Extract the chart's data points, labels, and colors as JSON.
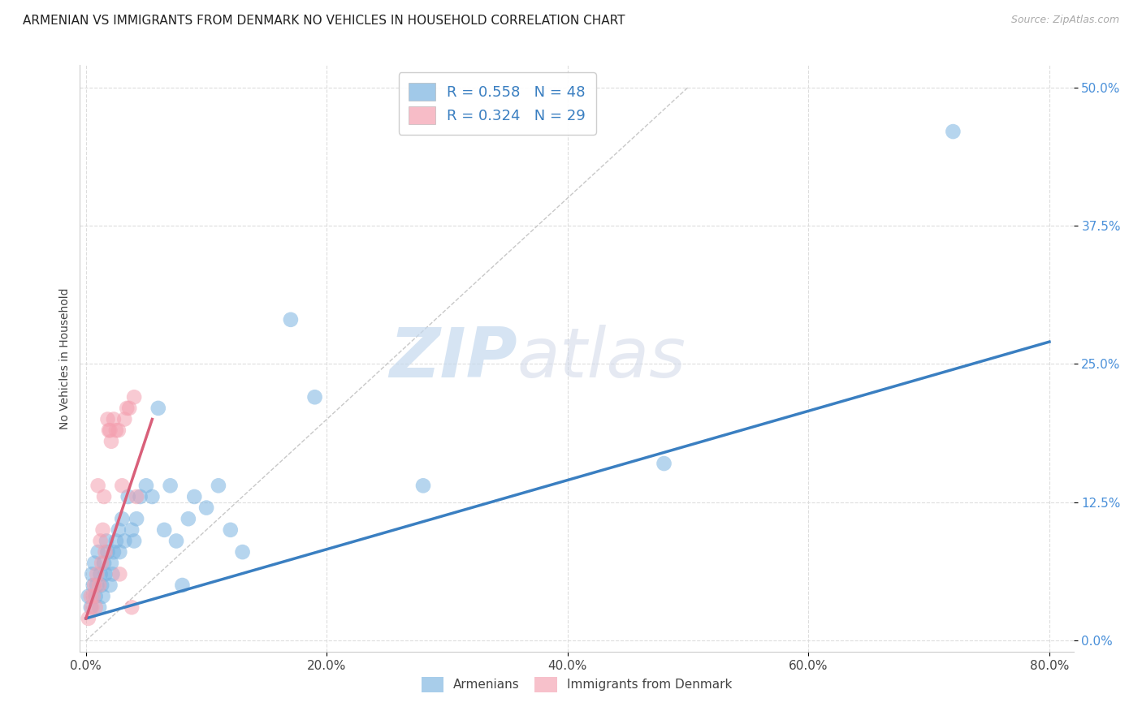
{
  "title": "ARMENIAN VS IMMIGRANTS FROM DENMARK NO VEHICLES IN HOUSEHOLD CORRELATION CHART",
  "source": "Source: ZipAtlas.com",
  "xlabel_ticks": [
    "0.0%",
    "20.0%",
    "40.0%",
    "60.0%",
    "80.0%"
  ],
  "xlabel_tick_vals": [
    0.0,
    0.2,
    0.4,
    0.6,
    0.8
  ],
  "ylabel_ticks": [
    "0.0%",
    "12.5%",
    "25.0%",
    "37.5%",
    "50.0%"
  ],
  "ylabel_tick_vals": [
    0.0,
    0.125,
    0.25,
    0.375,
    0.5
  ],
  "xlim": [
    -0.005,
    0.82
  ],
  "ylim": [
    -0.01,
    0.52
  ],
  "ylabel": "No Vehicles in Household",
  "legend_armenians": "Armenians",
  "legend_denmark": "Immigrants from Denmark",
  "armenian_color": "#7ab3e0",
  "denmark_color": "#f4a0b0",
  "armenian_R": "0.558",
  "armenian_N": "48",
  "denmark_R": "0.324",
  "denmark_N": "29",
  "watermark_zip": "ZIP",
  "watermark_atlas": "atlas",
  "blue_line_color": "#3a7fc1",
  "pink_line_color": "#d9607a",
  "diag_line_color": "#c8c8c8",
  "armenians_x": [
    0.002,
    0.004,
    0.005,
    0.006,
    0.007,
    0.008,
    0.009,
    0.01,
    0.011,
    0.012,
    0.013,
    0.014,
    0.015,
    0.016,
    0.017,
    0.018,
    0.02,
    0.021,
    0.022,
    0.023,
    0.025,
    0.027,
    0.028,
    0.03,
    0.032,
    0.035,
    0.038,
    0.04,
    0.042,
    0.045,
    0.05,
    0.055,
    0.06,
    0.065,
    0.07,
    0.075,
    0.08,
    0.085,
    0.09,
    0.1,
    0.11,
    0.12,
    0.13,
    0.17,
    0.19,
    0.28,
    0.48,
    0.72
  ],
  "armenians_y": [
    0.04,
    0.03,
    0.06,
    0.05,
    0.07,
    0.04,
    0.05,
    0.08,
    0.03,
    0.06,
    0.05,
    0.04,
    0.07,
    0.06,
    0.09,
    0.08,
    0.05,
    0.07,
    0.06,
    0.08,
    0.09,
    0.1,
    0.08,
    0.11,
    0.09,
    0.13,
    0.1,
    0.09,
    0.11,
    0.13,
    0.14,
    0.13,
    0.21,
    0.1,
    0.14,
    0.09,
    0.05,
    0.11,
    0.13,
    0.12,
    0.14,
    0.1,
    0.08,
    0.29,
    0.22,
    0.14,
    0.16,
    0.46
  ],
  "denmark_x": [
    0.002,
    0.004,
    0.005,
    0.006,
    0.007,
    0.008,
    0.009,
    0.01,
    0.011,
    0.012,
    0.013,
    0.014,
    0.015,
    0.016,
    0.018,
    0.019,
    0.02,
    0.021,
    0.023,
    0.025,
    0.027,
    0.028,
    0.03,
    0.032,
    0.034,
    0.036,
    0.038,
    0.04,
    0.042
  ],
  "denmark_y": [
    0.02,
    0.04,
    0.03,
    0.04,
    0.05,
    0.03,
    0.06,
    0.14,
    0.05,
    0.09,
    0.07,
    0.1,
    0.13,
    0.08,
    0.2,
    0.19,
    0.19,
    0.18,
    0.2,
    0.19,
    0.19,
    0.06,
    0.14,
    0.2,
    0.21,
    0.21,
    0.03,
    0.22,
    0.13
  ]
}
